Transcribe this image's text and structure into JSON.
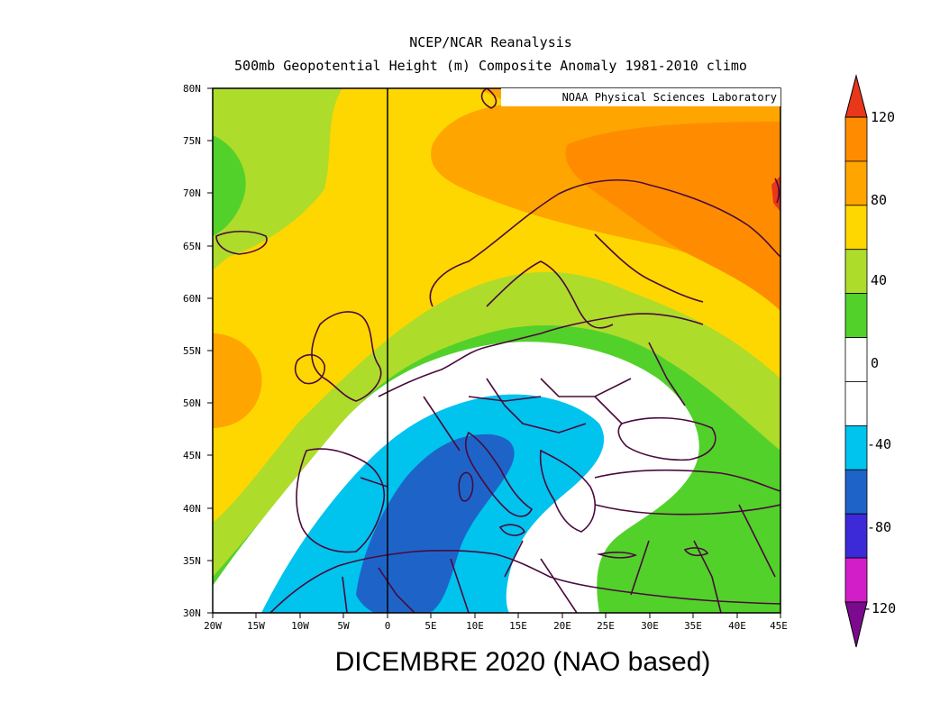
{
  "header": {
    "title_line1": "NCEP/NCAR Reanalysis",
    "title_line2": "500mb Geopotential Height (m) Composite Anomaly 1981-2010 climo"
  },
  "credit": "NOAA Physical Sciences Laboratory",
  "caption": "DICEMBRE 2020 (NAO based)",
  "map": {
    "lat_labels": [
      "80N",
      "75N",
      "70N",
      "65N",
      "60N",
      "55N",
      "50N",
      "45N",
      "40N",
      "35N",
      "30N"
    ],
    "lon_labels": [
      "20W",
      "15W",
      "10W",
      "5W",
      "0",
      "5E",
      "10E",
      "15E",
      "20E",
      "25E",
      "30E",
      "35E",
      "40E",
      "45E"
    ]
  },
  "colorbar": {
    "labels": [
      "120",
      "80",
      "40",
      "0",
      "-40",
      "-80",
      "-120"
    ],
    "colors": [
      "#e8371b",
      "#ff8c00",
      "#ffa500",
      "#ffd700",
      "#aedc2b",
      "#52d12a",
      "#ffffff",
      "#ffffff",
      "#00c3ee",
      "#1e64c8",
      "#3c2ad8",
      "#d21ec8",
      "#7c0a8e"
    ]
  }
}
